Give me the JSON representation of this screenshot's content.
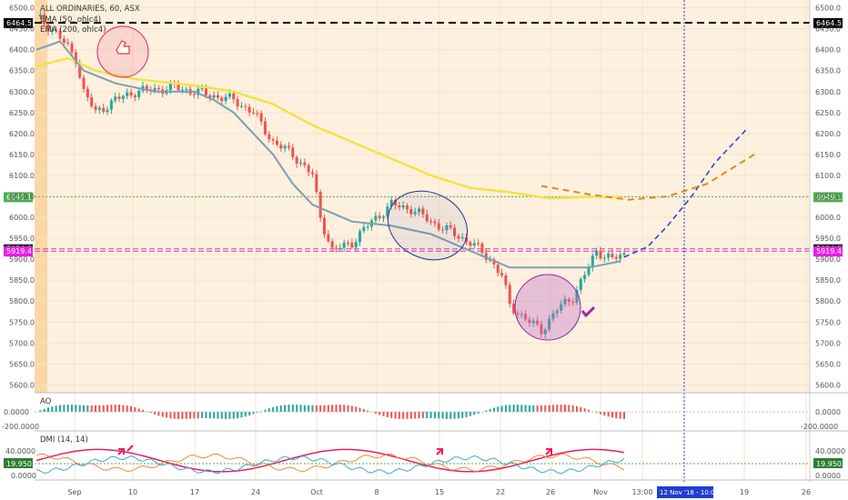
{
  "chart_data": {
    "type": "candlestick",
    "title": "ALL ORDINARIES, 60, ASX",
    "legend": [
      "EMA (50, ohlc4)",
      "EMA (200, ohlc4)"
    ],
    "ylim": [
      5590,
      6510
    ],
    "yticks": [
      5600,
      5650,
      5700,
      5750,
      5800,
      5850,
      5900,
      5950,
      6000,
      6050,
      6100,
      6150,
      6200,
      6250,
      6300,
      6350,
      6400,
      6450,
      6500
    ],
    "ytick_labels": [
      "5600.0",
      "5650.0",
      "5700.0",
      "5750.0",
      "5800.0",
      "5850.0",
      "5900.0",
      "5950.0",
      "6000.0",
      "6050.0",
      "6100.0",
      "6150.0",
      "6200.0",
      "6250.0",
      "6300.0",
      "6350.0",
      "6400.0",
      "6450.0",
      "6500.0"
    ],
    "xtick_labels": [
      "Sep",
      "10",
      "17",
      "24",
      "Oct",
      "8",
      "15",
      "22",
      "26",
      "Nov",
      "13:00",
      "19",
      "26"
    ],
    "levels": [
      {
        "label": "6464.5",
        "value": 6464.5,
        "color": "#000000",
        "style": "dashed"
      },
      {
        "label": "6049.1",
        "value": 6049.1,
        "color": "#4caf50",
        "style": "dotted"
      },
      {
        "label": "5924.8",
        "value": 5924.8,
        "color": "#b05c8c",
        "style": "dashed"
      },
      {
        "label": "5919.4",
        "value": 5919.4,
        "color": "#e91ee3",
        "style": "dashed"
      }
    ],
    "date_badge": "12 Nov '18 - 10:00",
    "path_points": [
      [
        0,
        6480
      ],
      [
        5,
        6440
      ],
      [
        10,
        6380
      ],
      [
        12,
        6300
      ],
      [
        15,
        6250
      ],
      [
        20,
        6280
      ],
      [
        25,
        6300
      ],
      [
        35,
        6310
      ],
      [
        45,
        6290
      ],
      [
        50,
        6280
      ],
      [
        55,
        6250
      ],
      [
        60,
        6180
      ],
      [
        65,
        6150
      ],
      [
        70,
        6100
      ],
      [
        72,
        6000
      ],
      [
        75,
        5920
      ],
      [
        80,
        5940
      ],
      [
        85,
        5990
      ],
      [
        90,
        6030
      ],
      [
        95,
        6020
      ],
      [
        100,
        5990
      ],
      [
        110,
        5940
      ],
      [
        115,
        5900
      ],
      [
        118,
        5860
      ],
      [
        120,
        5790
      ],
      [
        125,
        5750
      ],
      [
        128,
        5730
      ],
      [
        132,
        5780
      ],
      [
        136,
        5810
      ],
      [
        140,
        5880
      ],
      [
        142,
        5920
      ],
      [
        146,
        5900
      ],
      [
        149,
        5910
      ]
    ],
    "ema50_points": [
      [
        0,
        6400
      ],
      [
        6,
        6420
      ],
      [
        12,
        6350
      ],
      [
        20,
        6320
      ],
      [
        30,
        6300
      ],
      [
        40,
        6300
      ],
      [
        45,
        6280
      ],
      [
        50,
        6250
      ],
      [
        55,
        6200
      ],
      [
        60,
        6150
      ],
      [
        65,
        6080
      ],
      [
        70,
        6030
      ],
      [
        80,
        5990
      ],
      [
        90,
        5980
      ],
      [
        100,
        5960
      ],
      [
        110,
        5920
      ],
      [
        120,
        5880
      ],
      [
        130,
        5880
      ],
      [
        140,
        5880
      ],
      [
        148,
        5895
      ]
    ],
    "ema200_points": [
      [
        0,
        6360
      ],
      [
        8,
        6380
      ],
      [
        15,
        6350
      ],
      [
        25,
        6330
      ],
      [
        40,
        6315
      ],
      [
        50,
        6300
      ],
      [
        60,
        6270
      ],
      [
        70,
        6220
      ],
      [
        80,
        6180
      ],
      [
        90,
        6140
      ],
      [
        100,
        6100
      ],
      [
        110,
        6070
      ],
      [
        120,
        6060
      ],
      [
        130,
        6045
      ],
      [
        140,
        6049
      ],
      [
        148,
        6049
      ]
    ],
    "proj_blue": [
      [
        149,
        5905
      ],
      [
        155,
        5930
      ],
      [
        160,
        5980
      ],
      [
        166,
        6049
      ],
      [
        172,
        6130
      ],
      [
        180,
        6210
      ]
    ],
    "proj_orange": [
      [
        128,
        6075
      ],
      [
        140,
        6055
      ],
      [
        150,
        6042
      ],
      [
        160,
        6050
      ],
      [
        170,
        6080
      ],
      [
        182,
        6150
      ]
    ],
    "ao_panel": {
      "title": "AO",
      "ytick_labels": [
        "0.0000",
        "-200.0000"
      ]
    },
    "dmi_panel": {
      "title": "DMI (14, 14)",
      "ytick_labels": [
        "40.0000",
        "19.9503",
        "0.0000"
      ],
      "level": 19.9503
    }
  },
  "colors": {
    "candle_up": "#26a69a",
    "candle_down": "#ef5350",
    "ema50": "#7b9fb2",
    "ema200": "#f0e442",
    "proj_blue": "#1f3ecf",
    "proj_orange": "#e08a1e",
    "shade": "#fde8cf"
  }
}
